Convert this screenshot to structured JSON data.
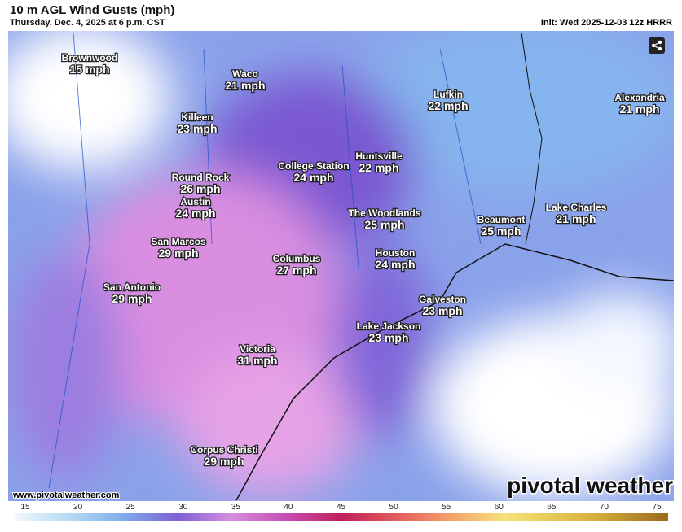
{
  "header": {
    "title": "10 m AGL Wind Gusts (mph)",
    "subtitle": "Thursday, Dec. 4, 2025 at 6 p.m. CST",
    "init": "Init: Wed 2025-12-03 12z HRRR"
  },
  "cities": [
    {
      "name": "Brownwood",
      "label": "15 mph"
    },
    {
      "name": "Waco",
      "label": "21 mph"
    },
    {
      "name": "Killeen",
      "label": "23 mph"
    },
    {
      "name": "Lufkin",
      "label": "22 mph"
    },
    {
      "name": "Alexandria",
      "label": "21 mph"
    },
    {
      "name": "Round Rock",
      "label": "26 mph"
    },
    {
      "name": "College Station",
      "label": "24 mph"
    },
    {
      "name": "Huntsville",
      "label": "22 mph"
    },
    {
      "name": "Austin",
      "label": "24 mph"
    },
    {
      "name": "The Woodlands",
      "label": "25 mph"
    },
    {
      "name": "Beaumont",
      "label": "25 mph"
    },
    {
      "name": "Lake Charles",
      "label": "21 mph"
    },
    {
      "name": "San Marcos",
      "label": "29 mph"
    },
    {
      "name": "Columbus",
      "label": "27 mph"
    },
    {
      "name": "Houston",
      "label": "24 mph"
    },
    {
      "name": "San Antonio",
      "label": "29 mph"
    },
    {
      "name": "Galveston",
      "label": "23 mph"
    },
    {
      "name": "Lake Jackson",
      "label": "23 mph"
    },
    {
      "name": "Victoria",
      "label": "31 mph"
    },
    {
      "name": "Corpus Christi",
      "label": "29 mph"
    }
  ],
  "footer": {
    "url": "www.pivotalweather.com",
    "brand": "pivotal weather"
  },
  "colorbar": {
    "ticks": [
      15,
      20,
      25,
      30,
      35,
      40,
      45,
      50,
      55,
      60,
      65,
      70,
      75
    ]
  }
}
